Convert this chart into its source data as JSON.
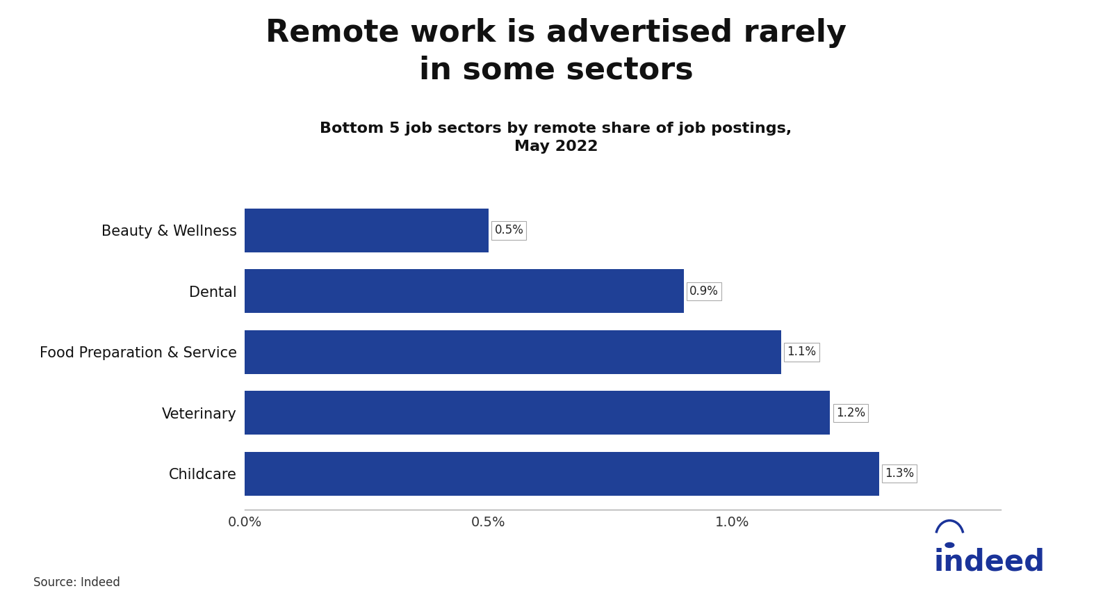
{
  "title": "Remote work is advertised rarely\nin some sectors",
  "subtitle": "Bottom 5 job sectors by remote share of job postings,\nMay 2022",
  "categories": [
    "Beauty & Wellness",
    "Dental",
    "Food Preparation & Service",
    "Veterinary",
    "Childcare"
  ],
  "values": [
    0.005,
    0.009,
    0.011,
    0.012,
    0.013
  ],
  "bar_labels": [
    "0.5%",
    "0.9%",
    "1.1%",
    "1.2%",
    "1.3%"
  ],
  "bar_color": "#1f4096",
  "background_color": "#ffffff",
  "xlim": [
    0,
    0.0155
  ],
  "xticks": [
    0.0,
    0.005,
    0.01
  ],
  "xtick_labels": [
    "0.0%",
    "0.5%",
    "1.0%"
  ],
  "source_text": "Source: Indeed",
  "title_fontsize": 32,
  "subtitle_fontsize": 16,
  "ylabel_fontsize": 15,
  "label_fontsize": 12,
  "tick_fontsize": 14,
  "source_fontsize": 12,
  "indeed_color": "#1a3399",
  "bar_height": 0.72
}
